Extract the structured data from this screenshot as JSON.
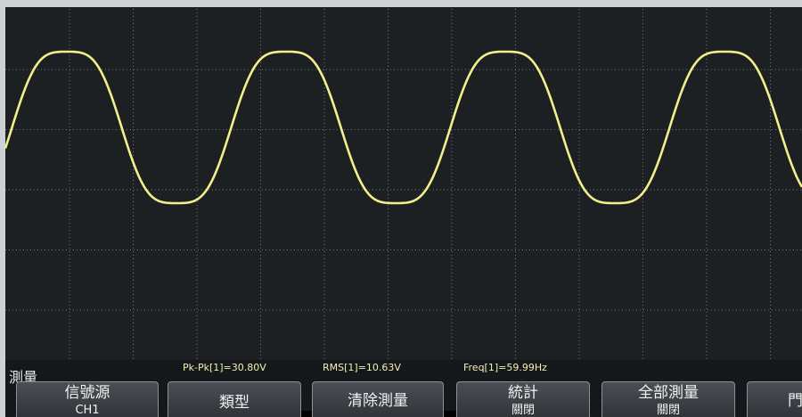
{
  "menu": {
    "title": "測量",
    "measurements": [
      "Pk-Pk[1]=30.80V",
      "RMS[1]=10.63V",
      "Freq[1]=59.99Hz"
    ],
    "buttons": [
      {
        "label": "信號源",
        "sub": "CH1"
      },
      {
        "label": "類型"
      },
      {
        "label": "清除測量"
      },
      {
        "label": "統計",
        "sub": "關閉"
      },
      {
        "label": "全部測量",
        "sub": "關閉"
      },
      {
        "label": "門"
      }
    ]
  }
}
